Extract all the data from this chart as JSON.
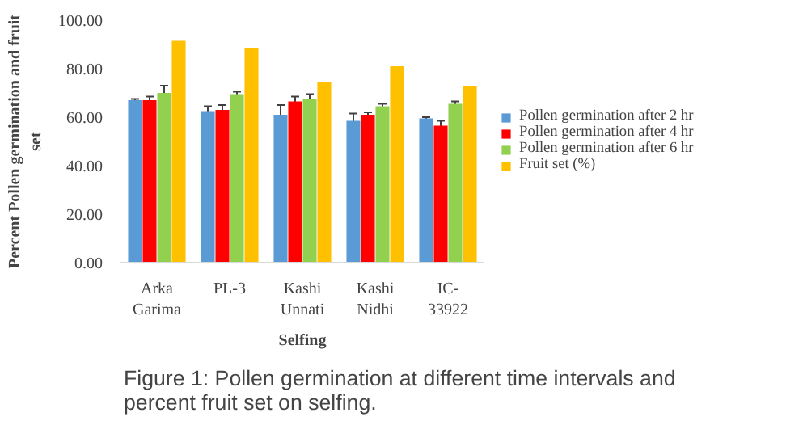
{
  "chart_data": {
    "type": "bar",
    "xlabel": "Selfing",
    "ylabel": "Percent Pollen germination and fruit set",
    "categories": [
      "Arka Garima",
      "PL-3",
      "Kashi Unnati",
      "Kashi Nidhi",
      "IC-33922"
    ],
    "series": [
      {
        "name": "Pollen germination after 2 hr",
        "color": "#5b9bd5",
        "values": [
          67,
          62.5,
          61,
          58.5,
          59.5
        ],
        "errors": [
          0.5,
          2,
          4,
          3,
          0.5
        ]
      },
      {
        "name": "Pollen germination after 4 hr",
        "color": "#ff0000",
        "values": [
          67,
          63,
          66.5,
          61,
          56.5
        ],
        "errors": [
          1.5,
          2,
          2,
          1,
          2
        ]
      },
      {
        "name": "Pollen germination after 6 hr",
        "color": "#92d050",
        "values": [
          70,
          69.5,
          67.5,
          64.5,
          65.5
        ],
        "errors": [
          3,
          1,
          2,
          1,
          1
        ]
      },
      {
        "name": "Fruit set (%)",
        "color": "#ffc000",
        "values": [
          91.5,
          88.5,
          74.5,
          81,
          73
        ]
      }
    ],
    "ylim": [
      0,
      100
    ],
    "yticks": [
      {
        "value": 0,
        "label": "0.00"
      },
      {
        "value": 20,
        "label": "20.00"
      },
      {
        "value": 40,
        "label": "40.00"
      },
      {
        "value": 60,
        "label": "60.00"
      },
      {
        "value": 80,
        "label": "80.00"
      },
      {
        "value": 100,
        "label": "100.00"
      }
    ],
    "grid": false,
    "legend": "right",
    "annotations": [
      "Figure 1: Pollen germination at different time intervals and percent fruit set on selfing."
    ]
  }
}
